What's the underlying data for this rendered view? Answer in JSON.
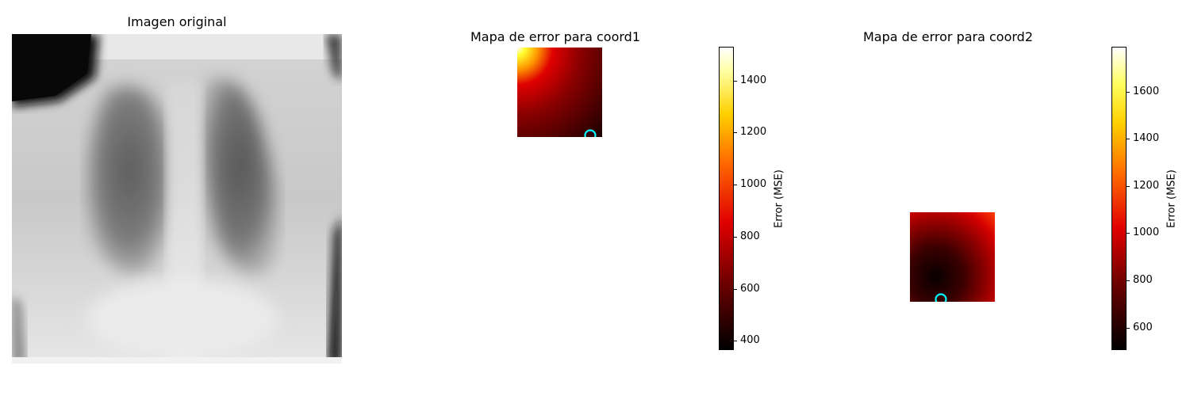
{
  "chart_data": [
    {
      "type": "image",
      "title": "Imagen original",
      "colormap": "gray"
    },
    {
      "type": "heatmap",
      "title": "Mapa de error para coord1",
      "colormap": "hot",
      "colorbar_label": "Error (MSE)",
      "colorbar_ticks": [
        400,
        600,
        800,
        1000,
        1200,
        1400
      ],
      "value_range": [
        365,
        1530
      ],
      "marker": {
        "row": 0.98,
        "col": 0.86,
        "color": "#00ffff"
      }
    },
    {
      "type": "heatmap",
      "title": "Mapa de error para coord2",
      "colormap": "hot",
      "colorbar_label": "Error (MSE)",
      "colorbar_ticks": [
        600,
        800,
        1000,
        1200,
        1400,
        1600
      ],
      "value_range": [
        505,
        1790
      ],
      "marker": {
        "row": 0.98,
        "col": 0.37,
        "color": "#00ffff"
      }
    }
  ]
}
